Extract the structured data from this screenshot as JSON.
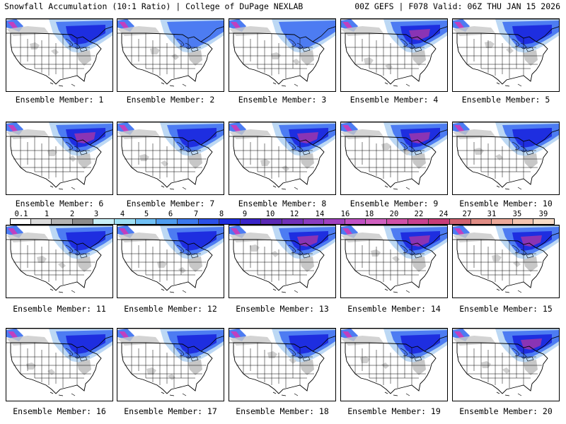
{
  "header": {
    "left_title": "Snowfall Accumulation (10:1 Ratio) | College of DuPage NEXLAB",
    "right_title": "00Z GEFS | F078 Valid: 06Z THU JAN 15 2026"
  },
  "members": [
    {
      "label": "Ensemble Member: 1",
      "intensity": 2
    },
    {
      "label": "Ensemble Member: 2",
      "intensity": 1
    },
    {
      "label": "Ensemble Member: 3",
      "intensity": 1
    },
    {
      "label": "Ensemble Member: 4",
      "intensity": 3
    },
    {
      "label": "Ensemble Member: 5",
      "intensity": 2
    },
    {
      "label": "Ensemble Member: 6",
      "intensity": 3
    },
    {
      "label": "Ensemble Member: 7",
      "intensity": 2
    },
    {
      "label": "Ensemble Member: 8",
      "intensity": 3
    },
    {
      "label": "Ensemble Member: 9",
      "intensity": 3
    },
    {
      "label": "Ensemble Member: 10",
      "intensity": 2
    },
    {
      "label": "Ensemble Member: 11",
      "intensity": 2
    },
    {
      "label": "Ensemble Member: 12",
      "intensity": 2
    },
    {
      "label": "Ensemble Member: 13",
      "intensity": 3
    },
    {
      "label": "Ensemble Member: 14",
      "intensity": 3
    },
    {
      "label": "Ensemble Member: 15",
      "intensity": 3
    },
    {
      "label": "Ensemble Member: 16",
      "intensity": 2
    },
    {
      "label": "Ensemble Member: 17",
      "intensity": 2
    },
    {
      "label": "Ensemble Member: 18",
      "intensity": 2
    },
    {
      "label": "Ensemble Member: 19",
      "intensity": 2
    },
    {
      "label": "Ensemble Member: 20",
      "intensity": 3
    }
  ],
  "colorbar": {
    "ticks": [
      "0.1",
      "1",
      "2",
      "3",
      "4",
      "5",
      "6",
      "7",
      "8",
      "9",
      "10",
      "12",
      "14",
      "16",
      "18",
      "20",
      "22",
      "24",
      "27",
      "31",
      "35",
      "39"
    ],
    "colors": [
      "#ffffff",
      "#dcdcdc",
      "#b4b4b4",
      "#8c8c8c",
      "#c8f0f8",
      "#9ee0f5",
      "#6fc0f5",
      "#4d9cf0",
      "#3a78ee",
      "#2a50e8",
      "#1e2ee0",
      "#3a24c8",
      "#5a28b4",
      "#7030b8",
      "#8a3cc0",
      "#a040c0",
      "#c050c4",
      "#d060c0",
      "#d050a8",
      "#c84090",
      "#c83c78",
      "#d06070",
      "#e08c84",
      "#eca898",
      "#f4c4b0",
      "#f8dcc8"
    ]
  },
  "legend_colors": {
    "snow_light": "#bcd8f4",
    "snow_mid": "#4d7cf2",
    "snow_heavy": "#1e2ee0",
    "snow_extreme": "#8a34b4",
    "trace": "#cfcfcf",
    "outline": "#9ee0f5"
  }
}
